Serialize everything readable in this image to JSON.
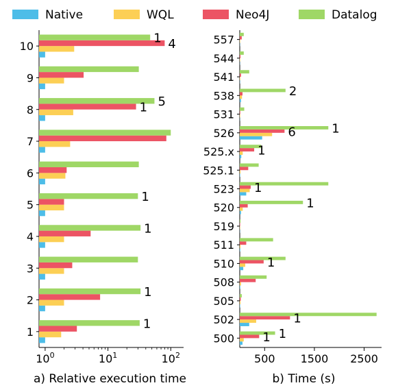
{
  "colors": {
    "Native": "#4dbde8",
    "WQL": "#fccf55",
    "Neo4J": "#ec5464",
    "Datalog": "#9fd766"
  },
  "legend": [
    "Native",
    "WQL",
    "Neo4J",
    "Datalog"
  ],
  "chart_data": [
    {
      "type": "bar",
      "orientation": "horizontal",
      "xscale": "log",
      "xlabel": "a) Relative execution time",
      "xticks": [
        "10",
        "10",
        "10"
      ],
      "xtick_exponents": [
        "0",
        "1",
        "2"
      ],
      "xtick_values": [
        1,
        10,
        100
      ],
      "xlim": [
        0.8,
        160
      ],
      "categories": [
        "1",
        "2",
        "3",
        "4",
        "5",
        "6",
        "7",
        "8",
        "9",
        "10"
      ],
      "series": [
        {
          "name": "Native",
          "values": [
            1,
            1,
            1,
            1,
            1,
            1,
            1,
            1,
            1,
            1
          ]
        },
        {
          "name": "WQL",
          "values": [
            1.8,
            2,
            2,
            2,
            2,
            2.1,
            2.5,
            2.8,
            2,
            2.9
          ]
        },
        {
          "name": "Neo4J",
          "values": [
            3.2,
            7.5,
            2.7,
            5.3,
            2,
            2.2,
            85,
            28,
            4.1,
            80
          ]
        },
        {
          "name": "Datalog",
          "values": [
            32,
            33,
            30,
            33,
            30,
            31,
            100,
            55,
            31,
            47
          ]
        }
      ],
      "annotations": [
        {
          "category": "1",
          "series": "Datalog",
          "text": "1"
        },
        {
          "category": "2",
          "series": "Datalog",
          "text": "1"
        },
        {
          "category": "4",
          "series": "Datalog",
          "text": "1"
        },
        {
          "category": "5",
          "series": "Datalog",
          "text": "1"
        },
        {
          "category": "8",
          "series": "Datalog",
          "text": "5"
        },
        {
          "category": "8",
          "series": "Neo4J",
          "text": "1"
        },
        {
          "category": "10",
          "series": "Datalog",
          "text": "1"
        },
        {
          "category": "10",
          "series": "Neo4J",
          "text": "4"
        }
      ]
    },
    {
      "type": "bar",
      "orientation": "horizontal",
      "xscale": "linear",
      "xlabel": "b) Time (s)",
      "xticks": [
        "500",
        "1500",
        "2500"
      ],
      "xtick_values": [
        500,
        1500,
        2500
      ],
      "xlim": [
        0,
        2850
      ],
      "categories": [
        "500",
        "502",
        "505",
        "508",
        "510",
        "511",
        "519",
        "520",
        "523",
        "525.1",
        "525.x",
        "526",
        "531",
        "538",
        "541",
        "544",
        "557"
      ],
      "series": [
        {
          "name": "Native",
          "values": [
            55,
            190,
            8,
            10,
            70,
            10,
            4,
            25,
            130,
            8,
            30,
            450,
            4,
            25,
            5,
            4,
            4
          ]
        },
        {
          "name": "WQL",
          "values": [
            80,
            330,
            15,
            25,
            110,
            15,
            6,
            60,
            200,
            15,
            60,
            650,
            8,
            45,
            10,
            8,
            8
          ]
        },
        {
          "name": "Neo4J",
          "values": [
            390,
            1010,
            20,
            320,
            480,
            130,
            8,
            160,
            220,
            170,
            290,
            900,
            10,
            55,
            25,
            15,
            40
          ]
        },
        {
          "name": "Datalog",
          "values": [
            710,
            2750,
            40,
            540,
            920,
            670,
            15,
            1270,
            1780,
            380,
            430,
            1780,
            90,
            920,
            190,
            80,
            80
          ]
        }
      ],
      "annotations": [
        {
          "category": "500",
          "series": "Neo4J",
          "text": "1"
        },
        {
          "category": "500",
          "series": "Datalog",
          "text": "1"
        },
        {
          "category": "502",
          "series": "Neo4J",
          "text": "1"
        },
        {
          "category": "510",
          "series": "Neo4J",
          "text": "1"
        },
        {
          "category": "520",
          "series": "Datalog",
          "text": "1"
        },
        {
          "category": "523",
          "series": "Neo4J",
          "text": "1"
        },
        {
          "category": "525.x",
          "series": "Neo4J",
          "text": "1"
        },
        {
          "category": "526",
          "series": "Neo4J",
          "text": "6"
        },
        {
          "category": "526",
          "series": "Datalog",
          "text": "1"
        },
        {
          "category": "538",
          "series": "Datalog",
          "text": "2"
        }
      ]
    }
  ]
}
